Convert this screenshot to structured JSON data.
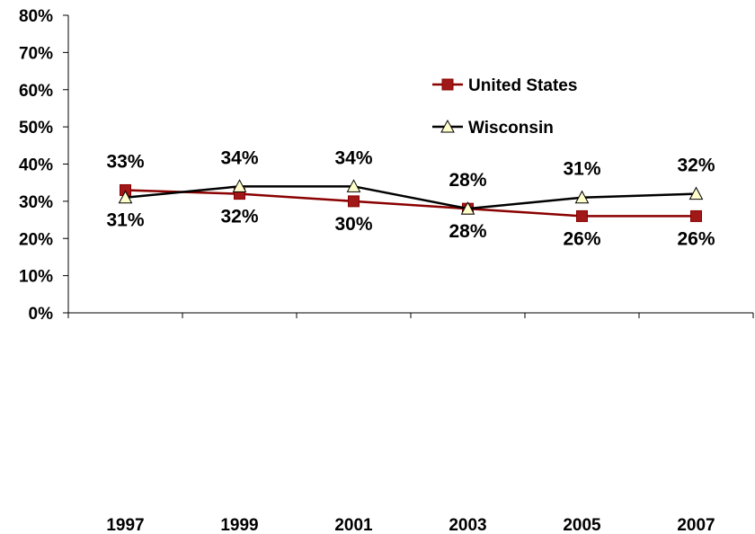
{
  "chart_data": {
    "type": "line",
    "title": "",
    "xlabel": "",
    "ylabel": "",
    "categories": [
      "1997",
      "1999",
      "2001",
      "2003",
      "2005",
      "2007"
    ],
    "ylim": [
      0,
      80
    ],
    "yticks": [
      0,
      10,
      20,
      30,
      40,
      50,
      60,
      70,
      80
    ],
    "ytick_labels": [
      "0%",
      "10%",
      "20%",
      "30%",
      "40%",
      "50%",
      "60%",
      "70%",
      "80%"
    ],
    "grid": false,
    "legend_position": "top-right",
    "series": [
      {
        "name": "United States",
        "values": [
          33,
          32,
          30,
          28,
          26,
          26
        ],
        "labels": [
          "33%",
          "32%",
          "30%",
          "28%",
          "26%",
          "26%"
        ],
        "color": "#8b0000",
        "marker": "square",
        "marker_fill": "#a01818"
      },
      {
        "name": "Wisconsin",
        "values": [
          31,
          34,
          34,
          28,
          31,
          32
        ],
        "labels": [
          "31%",
          "34%",
          "34%",
          "28%",
          "31%",
          "32%"
        ],
        "color": "#000000",
        "marker": "triangle",
        "marker_fill": "#ffffcc"
      }
    ]
  }
}
